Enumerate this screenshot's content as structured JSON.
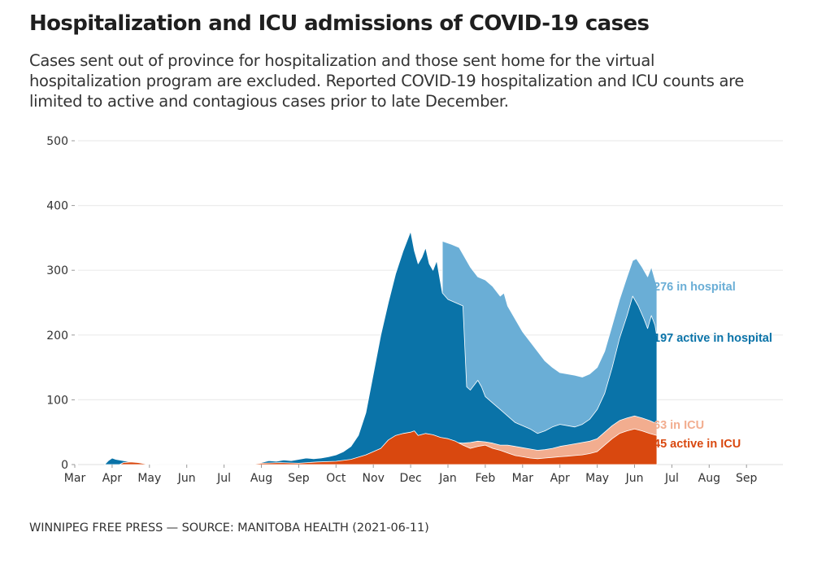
{
  "header": {
    "title": "Hospitalization and ICU admissions of COVID-19 cases",
    "subtitle": "Cases sent out of province for hospitalization and those sent home for the virtual hospitalization program are excluded. Reported COVID-19 hospitalization and ICU counts are limited to active and contagious cases prior to late December."
  },
  "footer": {
    "credit": "WINNIPEG FREE PRESS — SOURCE: MANITOBA HEALTH (2021-06-11)"
  },
  "chart_data": {
    "type": "area",
    "title": "Hospitalization and ICU admissions of COVID-19 cases",
    "xlabel": "",
    "ylabel": "",
    "ylim": [
      0,
      500
    ],
    "yticks": [
      0,
      100,
      200,
      300,
      400,
      500
    ],
    "grid": true,
    "x_range": [
      "2020-03-01",
      "2021-09-30"
    ],
    "xtick_labels": [
      "Mar",
      "Apr",
      "May",
      "Jun",
      "Jul",
      "Aug",
      "Sep",
      "Oct",
      "Nov",
      "Dec",
      "Jan",
      "Feb",
      "Mar",
      "Apr",
      "May",
      "Jun",
      "Jul",
      "Aug",
      "Sep"
    ],
    "x_unit": "months since 2020-03-01",
    "colors": {
      "in_hospital": "#6aaed6",
      "active_in_hospital": "#0a73a8",
      "in_icu": "#f2ad8f",
      "active_in_icu": "#d9480f"
    },
    "series": [
      {
        "name": "in hospital",
        "end_label": "276 in hospital",
        "color_key": "in_hospital",
        "points": [
          [
            9.85,
            345
          ],
          [
            9.95,
            343
          ],
          [
            10.1,
            340
          ],
          [
            10.3,
            335
          ],
          [
            10.4,
            325
          ],
          [
            10.6,
            305
          ],
          [
            10.8,
            290
          ],
          [
            11.0,
            285
          ],
          [
            11.2,
            275
          ],
          [
            11.4,
            260
          ],
          [
            11.5,
            265
          ],
          [
            11.6,
            245
          ],
          [
            11.8,
            225
          ],
          [
            12.0,
            205
          ],
          [
            12.2,
            190
          ],
          [
            12.4,
            175
          ],
          [
            12.6,
            160
          ],
          [
            12.8,
            150
          ],
          [
            13.0,
            142
          ],
          [
            13.2,
            140
          ],
          [
            13.4,
            138
          ],
          [
            13.6,
            135
          ],
          [
            13.8,
            140
          ],
          [
            14.0,
            150
          ],
          [
            14.2,
            175
          ],
          [
            14.4,
            215
          ],
          [
            14.6,
            255
          ],
          [
            14.8,
            290
          ],
          [
            14.95,
            315
          ],
          [
            15.05,
            318
          ],
          [
            15.2,
            305
          ],
          [
            15.35,
            290
          ],
          [
            15.45,
            305
          ],
          [
            15.55,
            285
          ],
          [
            15.6,
            276
          ]
        ]
      },
      {
        "name": "active in hospital",
        "end_label": "197 active in hospital",
        "color_key": "active_in_hospital",
        "points": [
          [
            0.8,
            0
          ],
          [
            0.9,
            6
          ],
          [
            1.0,
            10
          ],
          [
            1.1,
            8
          ],
          [
            1.3,
            6
          ],
          [
            1.5,
            4
          ],
          [
            1.8,
            2
          ],
          [
            2.0,
            1
          ],
          [
            2.3,
            0
          ],
          [
            4.9,
            0
          ],
          [
            5.0,
            3
          ],
          [
            5.2,
            6
          ],
          [
            5.4,
            5
          ],
          [
            5.6,
            7
          ],
          [
            5.8,
            6
          ],
          [
            6.0,
            8
          ],
          [
            6.2,
            10
          ],
          [
            6.4,
            9
          ],
          [
            6.6,
            10
          ],
          [
            6.8,
            12
          ],
          [
            7.0,
            15
          ],
          [
            7.2,
            20
          ],
          [
            7.4,
            28
          ],
          [
            7.6,
            45
          ],
          [
            7.8,
            80
          ],
          [
            8.0,
            140
          ],
          [
            8.2,
            200
          ],
          [
            8.4,
            250
          ],
          [
            8.6,
            295
          ],
          [
            8.8,
            330
          ],
          [
            9.0,
            360
          ],
          [
            9.1,
            330
          ],
          [
            9.2,
            310
          ],
          [
            9.3,
            320
          ],
          [
            9.4,
            335
          ],
          [
            9.5,
            310
          ],
          [
            9.6,
            300
          ],
          [
            9.7,
            315
          ],
          [
            9.85,
            265
          ],
          [
            10.0,
            255
          ],
          [
            10.2,
            250
          ],
          [
            10.4,
            245
          ],
          [
            10.5,
            120
          ],
          [
            10.6,
            115
          ],
          [
            10.8,
            130
          ],
          [
            10.9,
            120
          ],
          [
            11.0,
            105
          ],
          [
            11.2,
            95
          ],
          [
            11.4,
            85
          ],
          [
            11.6,
            75
          ],
          [
            11.8,
            65
          ],
          [
            12.0,
            60
          ],
          [
            12.2,
            55
          ],
          [
            12.4,
            48
          ],
          [
            12.6,
            52
          ],
          [
            12.8,
            58
          ],
          [
            13.0,
            62
          ],
          [
            13.2,
            60
          ],
          [
            13.4,
            58
          ],
          [
            13.6,
            62
          ],
          [
            13.8,
            70
          ],
          [
            14.0,
            85
          ],
          [
            14.2,
            110
          ],
          [
            14.4,
            150
          ],
          [
            14.6,
            195
          ],
          [
            14.8,
            230
          ],
          [
            14.95,
            260
          ],
          [
            15.1,
            245
          ],
          [
            15.25,
            225
          ],
          [
            15.35,
            210
          ],
          [
            15.45,
            230
          ],
          [
            15.55,
            215
          ],
          [
            15.6,
            197
          ]
        ]
      },
      {
        "name": "in ICU",
        "end_label": "63 in ICU",
        "color_key": "in_icu",
        "points": [
          [
            9.85,
            38
          ],
          [
            10.0,
            35
          ],
          [
            10.2,
            34
          ],
          [
            10.4,
            33
          ],
          [
            10.6,
            34
          ],
          [
            10.8,
            36
          ],
          [
            11.0,
            35
          ],
          [
            11.2,
            33
          ],
          [
            11.4,
            30
          ],
          [
            11.6,
            30
          ],
          [
            11.8,
            28
          ],
          [
            12.0,
            26
          ],
          [
            12.2,
            24
          ],
          [
            12.4,
            22
          ],
          [
            12.6,
            23
          ],
          [
            12.8,
            25
          ],
          [
            13.0,
            28
          ],
          [
            13.2,
            30
          ],
          [
            13.4,
            32
          ],
          [
            13.6,
            34
          ],
          [
            13.8,
            36
          ],
          [
            14.0,
            40
          ],
          [
            14.2,
            50
          ],
          [
            14.4,
            60
          ],
          [
            14.6,
            68
          ],
          [
            14.8,
            72
          ],
          [
            15.0,
            75
          ],
          [
            15.2,
            72
          ],
          [
            15.4,
            68
          ],
          [
            15.6,
            63
          ]
        ]
      },
      {
        "name": "active in ICU",
        "end_label": "45 active in ICU",
        "color_key": "active_in_icu",
        "points": [
          [
            1.2,
            0
          ],
          [
            1.3,
            3
          ],
          [
            1.5,
            4
          ],
          [
            1.7,
            3
          ],
          [
            1.9,
            1
          ],
          [
            2.0,
            0
          ],
          [
            4.7,
            0
          ],
          [
            5.0,
            2
          ],
          [
            5.5,
            3
          ],
          [
            6.0,
            2
          ],
          [
            6.5,
            4
          ],
          [
            7.0,
            5
          ],
          [
            7.4,
            8
          ],
          [
            7.8,
            15
          ],
          [
            8.0,
            20
          ],
          [
            8.2,
            25
          ],
          [
            8.4,
            38
          ],
          [
            8.6,
            45
          ],
          [
            8.8,
            48
          ],
          [
            9.0,
            50
          ],
          [
            9.1,
            52
          ],
          [
            9.2,
            45
          ],
          [
            9.4,
            48
          ],
          [
            9.6,
            46
          ],
          [
            9.8,
            42
          ],
          [
            10.0,
            40
          ],
          [
            10.2,
            36
          ],
          [
            10.4,
            30
          ],
          [
            10.6,
            25
          ],
          [
            10.8,
            28
          ],
          [
            11.0,
            30
          ],
          [
            11.2,
            25
          ],
          [
            11.4,
            22
          ],
          [
            11.6,
            18
          ],
          [
            11.8,
            14
          ],
          [
            12.0,
            12
          ],
          [
            12.2,
            10
          ],
          [
            12.4,
            9
          ],
          [
            12.6,
            10
          ],
          [
            12.8,
            11
          ],
          [
            13.0,
            12
          ],
          [
            13.2,
            13
          ],
          [
            13.4,
            14
          ],
          [
            13.6,
            15
          ],
          [
            13.8,
            17
          ],
          [
            14.0,
            20
          ],
          [
            14.2,
            30
          ],
          [
            14.4,
            40
          ],
          [
            14.6,
            48
          ],
          [
            14.8,
            52
          ],
          [
            15.0,
            55
          ],
          [
            15.2,
            52
          ],
          [
            15.4,
            48
          ],
          [
            15.6,
            45
          ]
        ]
      }
    ]
  }
}
